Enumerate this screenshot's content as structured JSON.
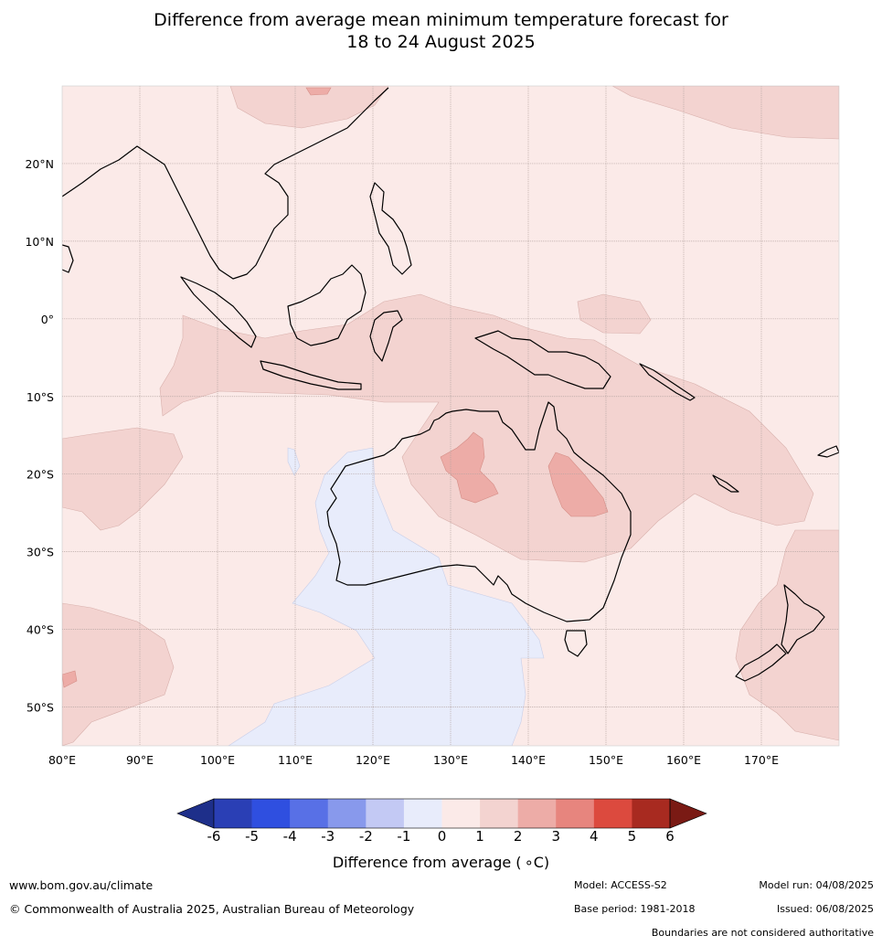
{
  "title_line1": "Difference from average mean minimum temperature forecast for",
  "title_line2": "18 to 24 August 2025",
  "map": {
    "lon_range": [
      80,
      180
    ],
    "lat_range": [
      -55,
      30
    ],
    "lon_ticks": [
      {
        "lon": 80,
        "label": "80°E"
      },
      {
        "lon": 90,
        "label": "90°E"
      },
      {
        "lon": 100,
        "label": "100°E"
      },
      {
        "lon": 110,
        "label": "110°E"
      },
      {
        "lon": 120,
        "label": "120°E"
      },
      {
        "lon": 130,
        "label": "130°E"
      },
      {
        "lon": 140,
        "label": "140°E"
      },
      {
        "lon": 150,
        "label": "150°E"
      },
      {
        "lon": 160,
        "label": "160°E"
      },
      {
        "lon": 170,
        "label": "170°E"
      }
    ],
    "lat_ticks": [
      {
        "lat": 20,
        "label": "20°N"
      },
      {
        "lat": 10,
        "label": "10°N"
      },
      {
        "lat": 0,
        "label": "0°"
      },
      {
        "lat": -10,
        "label": "10°S"
      },
      {
        "lat": -20,
        "label": "20°S"
      },
      {
        "lat": -30,
        "label": "30°S"
      },
      {
        "lat": -40,
        "label": "40°S"
      },
      {
        "lat": -50,
        "label": "50°S"
      }
    ],
    "background_anomaly_color": "#fbeae8"
  },
  "colorbar": {
    "ticks": [
      "-6",
      "-5",
      "-4",
      "-3",
      "-2",
      "-1",
      "0",
      "1",
      "2",
      "3",
      "4",
      "5",
      "6"
    ],
    "colors": [
      "#1e2f8a",
      "#2a3fb5",
      "#2f4fe0",
      "#5870e6",
      "#8899ec",
      "#c3c9f4",
      "#e8ecfb",
      "#fbeae8",
      "#f3d3d0",
      "#edaca7",
      "#e7857e",
      "#dc4a3e",
      "#a82a20",
      "#7a1a14"
    ],
    "label": "Difference from average ( ∘C)"
  },
  "footer": {
    "website": "www.bom.gov.au/climate",
    "copyright": "© Commonwealth of Australia 2025, Australian Bureau of Meteorology",
    "model": "Model: ACCESS-S2",
    "base_period": "Base period: 1981-2018",
    "model_run": "Model run: 04/08/2025",
    "issued": "Issued: 06/08/2025",
    "boundaries_note": "Boundaries are not considered authoritative"
  }
}
